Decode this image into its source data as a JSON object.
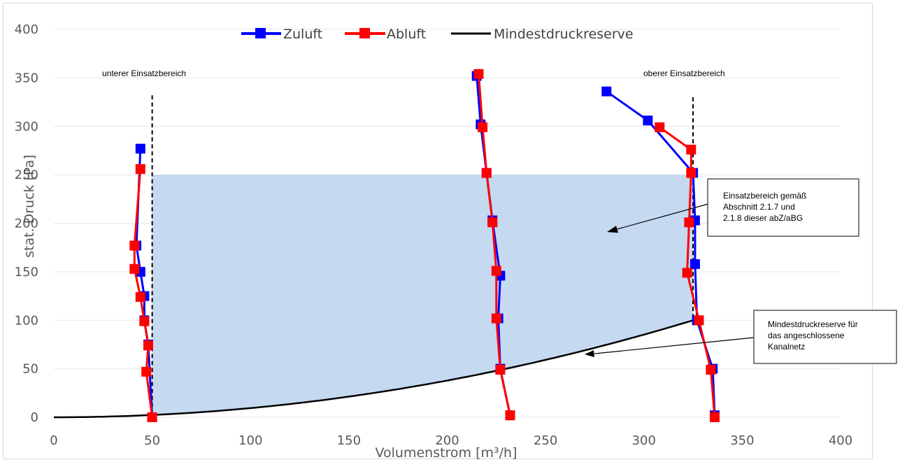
{
  "chart_data": {
    "type": "line",
    "xlabel": "Volumenstrom [m³/h]",
    "ylabel": "stat. Druck [Pa]",
    "xlim": [
      0,
      400
    ],
    "ylim": [
      0,
      400
    ],
    "x_ticks": [
      "0",
      "50",
      "100",
      "150",
      "200",
      "250",
      "300",
      "350",
      "400"
    ],
    "y_ticks": [
      "0",
      "50",
      "100",
      "150",
      "200",
      "250",
      "300",
      "350",
      "400"
    ],
    "grid": "horizontal",
    "legend": {
      "placement": "top-center",
      "entries": [
        "Zuluft",
        "Abluft",
        "Mindestdruckreserve"
      ]
    },
    "colors": {
      "Zuluft": "#0000ff",
      "Abluft": "#ff0000",
      "Mindestdruckreserve": "#000000",
      "area": "#c5d9f1",
      "grid": "#e6e6e6"
    },
    "series": [
      {
        "name": "Zuluft",
        "curves": [
          [
            [
              50,
              0
            ],
            [
              48,
              75
            ],
            [
              46,
              100
            ],
            [
              46,
              125
            ],
            [
              44,
              150
            ],
            [
              42,
              177
            ],
            [
              44,
              277
            ]
          ],
          [
            [
              232,
              2
            ],
            [
              227,
              50
            ],
            [
              226,
              102
            ],
            [
              227,
              146
            ],
            [
              223,
              203
            ],
            [
              220,
              252
            ],
            [
              217,
              302
            ],
            [
              215,
              352
            ]
          ],
          [
            [
              336,
              2
            ],
            [
              335,
              50
            ],
            [
              327,
              100
            ],
            [
              326,
              158
            ],
            [
              326,
              203
            ],
            [
              325,
              252
            ],
            [
              302,
              306
            ],
            [
              281,
              336
            ]
          ]
        ]
      },
      {
        "name": "Abluft",
        "curves": [
          [
            [
              50,
              0
            ],
            [
              47,
              47
            ],
            [
              48,
              74
            ],
            [
              46,
              99
            ],
            [
              44,
              124
            ],
            [
              41,
              153
            ],
            [
              41,
              177
            ],
            [
              44,
              256
            ]
          ],
          [
            [
              232,
              2
            ],
            [
              227,
              49
            ],
            [
              225,
              102
            ],
            [
              225,
              151
            ],
            [
              223,
              201
            ],
            [
              220,
              252
            ],
            [
              218,
              299
            ],
            [
              216,
              354
            ]
          ],
          [
            [
              336,
              0
            ],
            [
              334,
              49
            ],
            [
              328,
              100
            ],
            [
              322,
              149
            ],
            [
              323,
              201
            ],
            [
              324,
              252
            ],
            [
              324,
              276
            ],
            [
              308,
              299
            ]
          ]
        ]
      },
      {
        "name": "Mindestdruckreserve",
        "formula": "y = 100 * (x / 325)^2",
        "x_range": [
          0,
          325
        ]
      }
    ],
    "operating_area": {
      "upper_pressure": 250,
      "left_boundary": 50,
      "right_boundary": 325
    },
    "boundaries": [
      {
        "label": "unterer Einsatzbereich",
        "x": 50,
        "y_top": 332
      },
      {
        "label": "oberer Einsatzbereich",
        "x": 325,
        "y_top": 330
      }
    ],
    "annotations": [
      {
        "lines": [
          "Einsatzbereich gemäß",
          "Abschnitt 2.1.7 und",
          "2.1.8 dieser abZ/aBG"
        ],
        "arrow_to": [
          285,
          190
        ]
      },
      {
        "lines": [
          "Mindestdruckreserve für",
          "das angeschlossene",
          "Kanalnetz"
        ],
        "arrow_to": [
          272,
          62
        ]
      }
    ]
  }
}
